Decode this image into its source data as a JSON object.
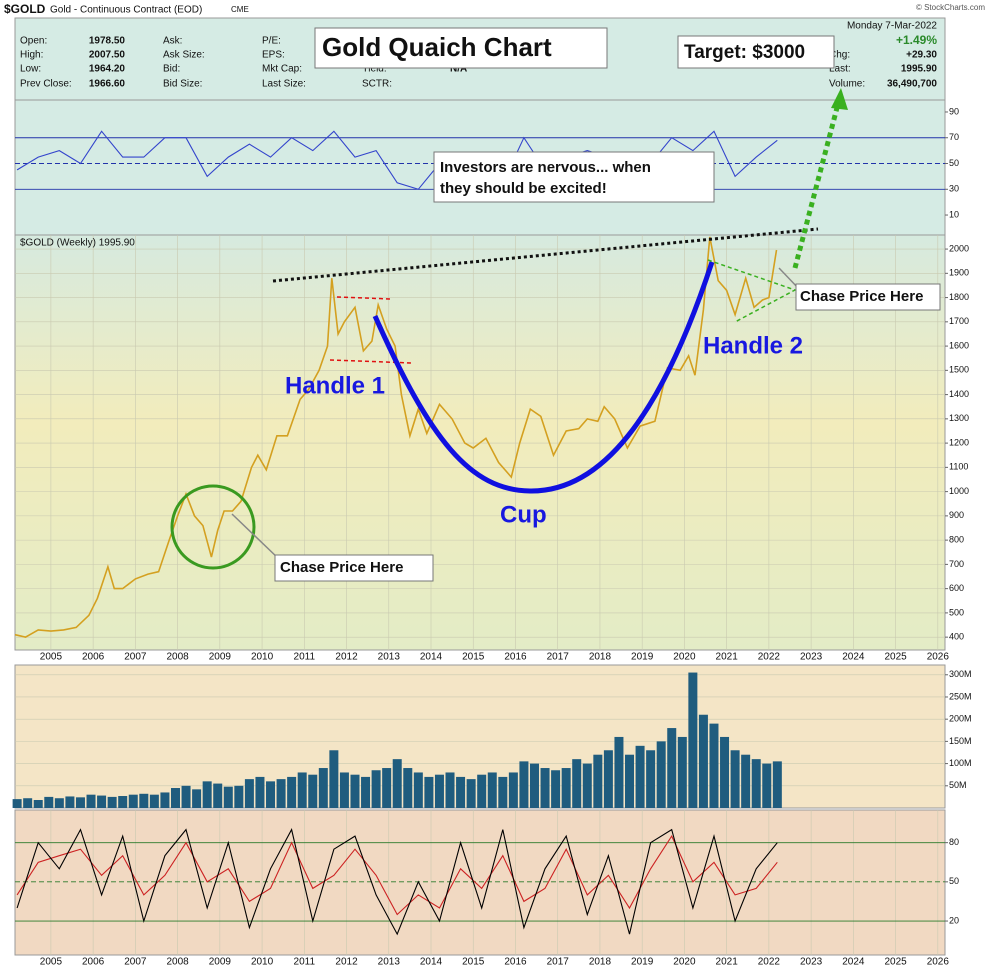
{
  "header": {
    "symbol": "$GOLD",
    "description": "Gold - Continuous Contract (EOD)",
    "exchange": "CME",
    "copyright": "© StockCharts.com",
    "date": "Monday  7-Mar-2022",
    "change_pct": "+1.49%",
    "quote": [
      {
        "label": "Open:",
        "value": "1978.50"
      },
      {
        "label": "High:",
        "value": "2007.50"
      },
      {
        "label": "Low:",
        "value": "1964.20"
      },
      {
        "label": "Prev Close:",
        "value": "1966.60"
      }
    ],
    "col2": [
      "Ask:",
      "Ask Size:",
      "Bid:",
      "Bid Size:"
    ],
    "col3": [
      "P/E:",
      "EPS:",
      "Mkt Cap:",
      "Last Size:"
    ],
    "col4": [
      {
        "label": "Yield:",
        "value": "N/A"
      },
      {
        "label": "SCTR:"
      }
    ],
    "right": [
      {
        "label": "Chg:",
        "value": "+29.30"
      },
      {
        "label": "Last:",
        "value": "1995.90"
      },
      {
        "label": "Volume:",
        "value": "36,490,700"
      }
    ]
  },
  "chart_data": [
    {
      "type": "line",
      "title": "Gold Quaich Chart",
      "annotations": {
        "target": "Target: $3000",
        "note_lines": [
          "Investors are nervous... when",
          "they should be excited!"
        ],
        "handle1": "Handle 1",
        "handle2": "Handle 2",
        "cup": "Cup",
        "chase1": "Chase Price Here",
        "chase2": "Chase Price Here"
      },
      "x": [
        2004.15,
        2004.4,
        2004.7,
        2005.0,
        2005.3,
        2005.6,
        2005.9,
        2006.1,
        2006.35,
        2006.5,
        2006.7,
        2007.0,
        2007.3,
        2007.55,
        2007.8,
        2008.0,
        2008.2,
        2008.4,
        2008.6,
        2008.8,
        2008.95,
        2009.1,
        2009.3,
        2009.5,
        2009.75,
        2009.9,
        2010.1,
        2010.35,
        2010.6,
        2010.9,
        2011.1,
        2011.35,
        2011.55,
        2011.65,
        2011.8,
        2011.95,
        2012.2,
        2012.4,
        2012.6,
        2012.75,
        2012.95,
        2013.15,
        2013.3,
        2013.5,
        2013.7,
        2013.9,
        2014.2,
        2014.5,
        2014.8,
        2015.0,
        2015.3,
        2015.6,
        2015.9,
        2016.1,
        2016.35,
        2016.6,
        2016.9,
        2017.2,
        2017.5,
        2017.7,
        2017.95,
        2018.1,
        2018.35,
        2018.65,
        2018.95,
        2019.3,
        2019.6,
        2019.9,
        2020.1,
        2020.25,
        2020.45,
        2020.6,
        2020.8,
        2021.0,
        2021.2,
        2021.45,
        2021.65,
        2021.85,
        2022.0,
        2022.18
      ],
      "series": [
        {
          "name": "$GOLD (Weekly) 1995.90",
          "color": "#d4a020",
          "values": [
            410,
            400,
            430,
            425,
            430,
            440,
            490,
            560,
            690,
            600,
            600,
            640,
            660,
            670,
            800,
            900,
            990,
            900,
            860,
            730,
            840,
            920,
            920,
            960,
            1100,
            1150,
            1090,
            1230,
            1230,
            1380,
            1420,
            1500,
            1600,
            1880,
            1650,
            1700,
            1760,
            1580,
            1620,
            1770,
            1670,
            1600,
            1400,
            1230,
            1340,
            1240,
            1360,
            1300,
            1200,
            1180,
            1220,
            1120,
            1060,
            1200,
            1340,
            1310,
            1150,
            1250,
            1260,
            1300,
            1290,
            1350,
            1300,
            1180,
            1270,
            1290,
            1510,
            1500,
            1560,
            1480,
            1750,
            2050,
            1870,
            1830,
            1730,
            1880,
            1760,
            1790,
            1800,
            1996
          ]
        }
      ],
      "xlim": [
        2004.15,
        2026.17
      ],
      "xticks": [
        2005,
        2006,
        2007,
        2008,
        2009,
        2010,
        2011,
        2012,
        2013,
        2014,
        2015,
        2016,
        2017,
        2018,
        2019,
        2020,
        2021,
        2022,
        2023,
        2024,
        2025,
        2026
      ],
      "ylim": [
        347,
        2058
      ],
      "yticks": [
        400,
        500,
        600,
        700,
        800,
        900,
        1000,
        1100,
        1200,
        1300,
        1400,
        1500,
        1600,
        1700,
        1800,
        1900,
        2000
      ],
      "grid": true
    },
    {
      "type": "line",
      "x": [
        2004.2,
        2004.7,
        2005.2,
        2005.7,
        2006.2,
        2006.7,
        2007.2,
        2007.7,
        2008.2,
        2008.7,
        2009.2,
        2009.7,
        2010.2,
        2010.7,
        2011.2,
        2011.7,
        2012.2,
        2012.7,
        2013.2,
        2013.7,
        2014.2,
        2014.7,
        2015.2,
        2015.7,
        2016.2,
        2016.7,
        2017.2,
        2017.7,
        2018.2,
        2018.7,
        2019.2,
        2019.7,
        2020.2,
        2020.7,
        2021.2,
        2021.7,
        2022.2
      ],
      "series": [
        {
          "color": "#3344cc",
          "values": [
            45,
            55,
            60,
            50,
            75,
            55,
            55,
            70,
            70,
            40,
            55,
            65,
            55,
            70,
            60,
            75,
            55,
            60,
            35,
            30,
            50,
            40,
            45,
            35,
            70,
            45,
            55,
            60,
            55,
            40,
            50,
            70,
            60,
            75,
            40,
            55,
            68
          ]
        }
      ],
      "xlim": [
        2004.15,
        2026.17
      ],
      "ylim": [
        -5.5,
        99.3
      ],
      "yticks": [
        10,
        30,
        50,
        70,
        90
      ],
      "levels": [
        70,
        50,
        30
      ],
      "level_color": "#2233aa"
    },
    {
      "type": "bar",
      "x": [
        2004.2,
        2004.45,
        2004.7,
        2004.95,
        2005.2,
        2005.45,
        2005.7,
        2005.95,
        2006.2,
        2006.45,
        2006.7,
        2006.95,
        2007.2,
        2007.45,
        2007.7,
        2007.95,
        2008.2,
        2008.45,
        2008.7,
        2008.95,
        2009.2,
        2009.45,
        2009.7,
        2009.95,
        2010.2,
        2010.45,
        2010.7,
        2010.95,
        2011.2,
        2011.45,
        2011.7,
        2011.95,
        2012.2,
        2012.45,
        2012.7,
        2012.95,
        2013.2,
        2013.45,
        2013.7,
        2013.95,
        2014.2,
        2014.45,
        2014.7,
        2014.95,
        2015.2,
        2015.45,
        2015.7,
        2015.95,
        2016.2,
        2016.45,
        2016.7,
        2016.95,
        2017.2,
        2017.45,
        2017.7,
        2017.95,
        2018.2,
        2018.45,
        2018.7,
        2018.95,
        2019.2,
        2019.45,
        2019.7,
        2019.95,
        2020.2,
        2020.45,
        2020.7,
        2020.95,
        2021.2,
        2021.45,
        2021.7,
        2021.95,
        2022.2
      ],
      "values": [
        20000000.0,
        22000000.0,
        18000000.0,
        25000000.0,
        22000000.0,
        26000000.0,
        24000000.0,
        30000000.0,
        28000000.0,
        25000000.0,
        27000000.0,
        30000000.0,
        32000000.0,
        30000000.0,
        35000000.0,
        45000000.0,
        50000000.0,
        42000000.0,
        60000000.0,
        55000000.0,
        48000000.0,
        50000000.0,
        65000000.0,
        70000000.0,
        60000000.0,
        65000000.0,
        70000000.0,
        80000000.0,
        75000000.0,
        90000000.0,
        130000000.0,
        80000000.0,
        75000000.0,
        70000000.0,
        85000000.0,
        90000000.0,
        110000000.0,
        90000000.0,
        80000000.0,
        70000000.0,
        75000000.0,
        80000000.0,
        70000000.0,
        65000000.0,
        75000000.0,
        80000000.0,
        70000000.0,
        80000000.0,
        105000000.0,
        100000000.0,
        90000000.0,
        85000000.0,
        90000000.0,
        110000000.0,
        100000000.0,
        120000000.0,
        130000000.0,
        160000000.0,
        120000000.0,
        140000000.0,
        130000000.0,
        150000000.0,
        180000000.0,
        160000000.0,
        305000000.0,
        210000000.0,
        190000000.0,
        160000000.0,
        130000000.0,
        120000000.0,
        110000000.0,
        100000000.0,
        105000000.0
      ],
      "color": "#1f5c7e",
      "xlim": [
        2004.15,
        2026.17
      ],
      "ylim": [
        0,
        322000000
      ],
      "yticks": [
        {
          "value": 50000000,
          "label": "50M"
        },
        {
          "value": 100000000,
          "label": "100M"
        },
        {
          "value": 150000000,
          "label": "150M"
        },
        {
          "value": 200000000,
          "label": "200M"
        },
        {
          "value": 250000000,
          "label": "250M"
        },
        {
          "value": 300000000,
          "label": "300M"
        }
      ],
      "grid": true
    },
    {
      "type": "line",
      "x": [
        2004.2,
        2004.7,
        2005.2,
        2005.7,
        2006.2,
        2006.7,
        2007.2,
        2007.7,
        2008.2,
        2008.7,
        2009.2,
        2009.7,
        2010.2,
        2010.7,
        2011.2,
        2011.7,
        2012.2,
        2012.7,
        2013.2,
        2013.7,
        2014.2,
        2014.7,
        2015.2,
        2015.7,
        2016.2,
        2016.7,
        2017.2,
        2017.7,
        2018.2,
        2018.7,
        2019.2,
        2019.7,
        2020.2,
        2020.7,
        2021.2,
        2021.7,
        2022.2
      ],
      "series": [
        {
          "color": "#cc2222",
          "values": [
            40,
            65,
            70,
            75,
            55,
            70,
            40,
            55,
            80,
            50,
            60,
            35,
            45,
            80,
            45,
            55,
            75,
            55,
            25,
            40,
            30,
            60,
            45,
            70,
            35,
            45,
            75,
            40,
            55,
            30,
            60,
            85,
            50,
            65,
            40,
            45,
            65
          ]
        },
        {
          "color": "#000000",
          "values": [
            30,
            80,
            60,
            90,
            40,
            85,
            20,
            70,
            90,
            30,
            80,
            15,
            60,
            90,
            20,
            75,
            85,
            40,
            10,
            50,
            20,
            80,
            30,
            90,
            15,
            60,
            85,
            25,
            70,
            10,
            80,
            90,
            30,
            85,
            20,
            60,
            80
          ]
        }
      ],
      "xlim": [
        2004.15,
        2026.17
      ],
      "xticks": [
        2005,
        2006,
        2007,
        2008,
        2009,
        2010,
        2011,
        2012,
        2013,
        2014,
        2015,
        2016,
        2017,
        2018,
        2019,
        2020,
        2021,
        2022,
        2023,
        2024,
        2025,
        2026
      ],
      "ylim": [
        -6,
        105
      ],
      "yticks": [
        20,
        50,
        80
      ],
      "levels": [
        80,
        50,
        20
      ],
      "level_color": "#2a7a2a"
    }
  ]
}
